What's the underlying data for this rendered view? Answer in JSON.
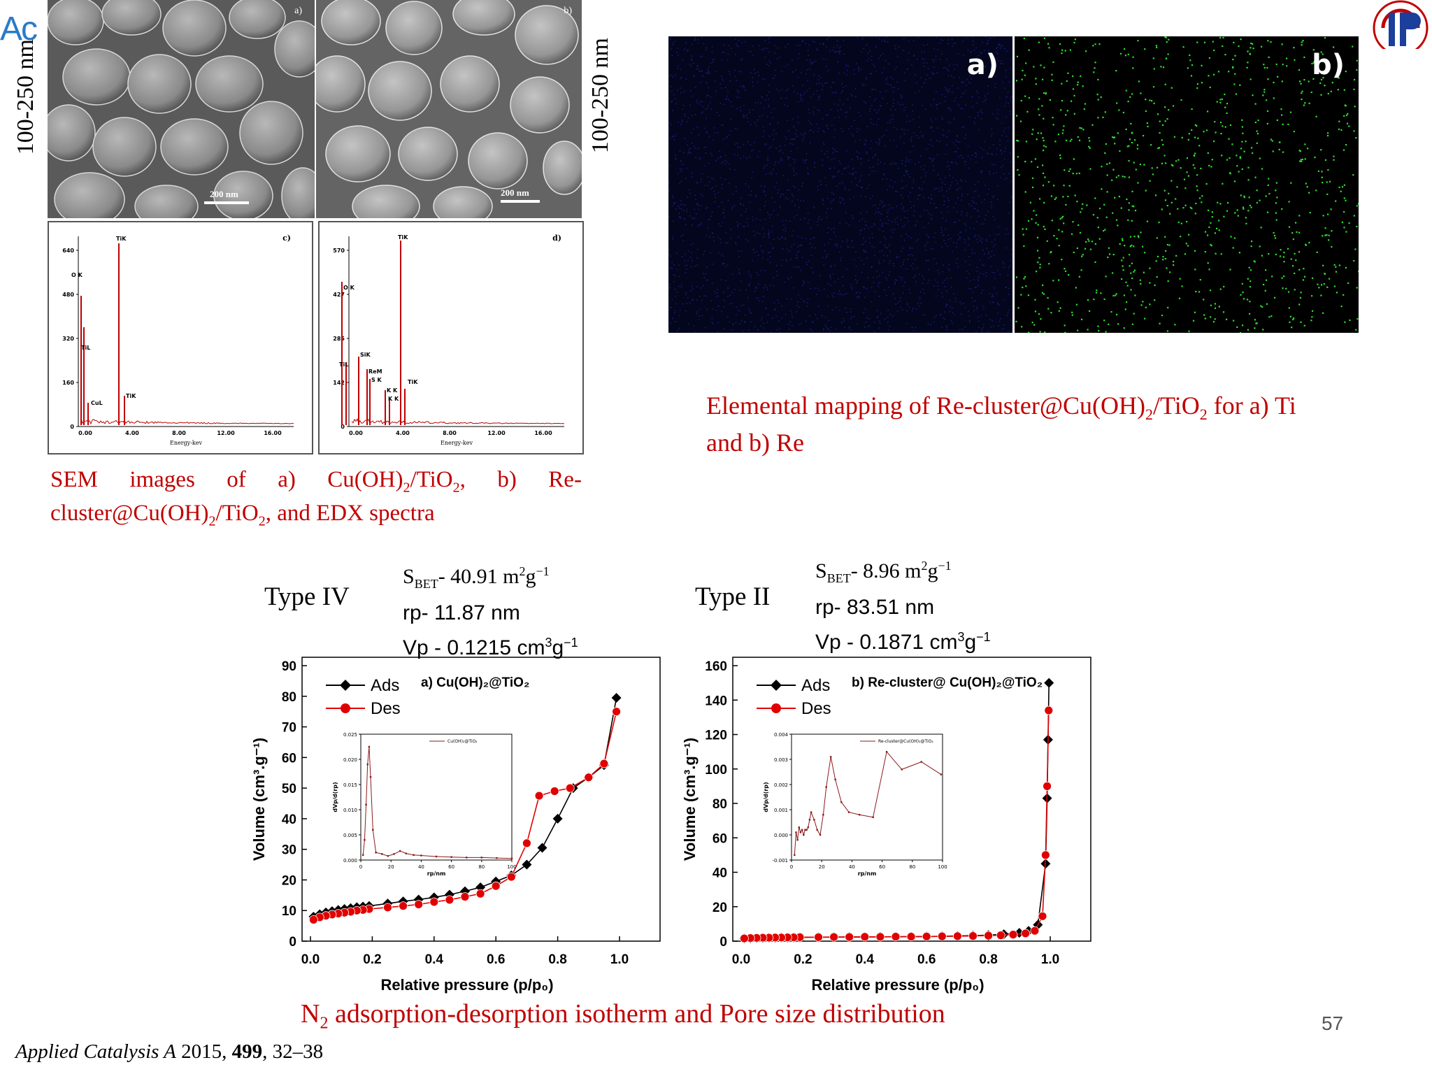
{
  "logo_left": {
    "text": "Ac"
  },
  "sem": {
    "panel_a": {
      "tag": "a)",
      "scale": "200 nm"
    },
    "panel_b": {
      "tag": "b)",
      "scale": "200 nm"
    },
    "size_left": "100-250 nm",
    "size_right": "100-250 nm"
  },
  "edx": {
    "c": {
      "tag": "c)",
      "xlabel": "Energy-kev",
      "xticks": [
        "0.00",
        "4.00",
        "8.00",
        "12.00",
        "16.00"
      ],
      "yticks": [
        "0",
        "160",
        "320",
        "480",
        "640"
      ],
      "peaks": [
        "TiK",
        "O K",
        "TiL",
        "CuL",
        "TiK"
      ]
    },
    "d": {
      "tag": "d)",
      "xlabel": "Energy-kev",
      "xticks": [
        "0.00",
        "4.00",
        "8.00",
        "12.00",
        "16.00"
      ],
      "yticks": [
        "0",
        "142",
        "285",
        "427",
        "570"
      ],
      "peaks": [
        "TiK",
        "O K",
        "SiK",
        "TiL",
        "ReM",
        "S K",
        "K K",
        "K K",
        "TiK"
      ]
    }
  },
  "sem_caption": {
    "line1": "SEM images of a) Cu(OH)",
    "line1b": "/TiO",
    "line1c": ", b) Re-",
    "line2": "cluster@Cu(OH)",
    "line2b": "/TiO",
    "line2c": ", and EDX spectra",
    "sub": "2"
  },
  "mapping": {
    "tag_a": "a)",
    "tag_b": "b)",
    "caption_p1": "Elemental mapping of Re-cluster@Cu(OH)",
    "caption_p2": "/TiO",
    "caption_p3": " for a) Ti",
    "caption_line2": "and b) Re",
    "sub": "2",
    "colors": {
      "ti": "#2a2fa8",
      "re": "#2fe02f"
    }
  },
  "iso_left": {
    "type": "Type IV",
    "sbet_prefix": "S",
    "sbet_sub": "BET",
    "sbet_val": "- 40.91 m",
    "sbet_sup1": "2",
    "sbet_unit": "g",
    "sbet_sup2": "−1",
    "rp": "rp- 11.87 nm",
    "vp": "Vp - 0.1215 cm",
    "vp_sup": "3",
    "vp_unit": "g",
    "vp_sup2": "−1"
  },
  "iso_right": {
    "type": "Type II",
    "sbet_prefix": "S",
    "sbet_sub": "BET",
    "sbet_val": "- 8.96 m",
    "sbet_sup1": "2",
    "sbet_unit": "g",
    "sbet_sup2": "−1",
    "rp": "rp- 83.51 nm",
    "vp": "Vp - 0.1871 cm",
    "vp_sup": "3",
    "vp_unit": "g",
    "vp_sup2": "−1"
  },
  "chart_data": [
    {
      "type": "line",
      "title": "a) Cu(OH)₂@TiO₂",
      "xlabel": "Relative pressure (p/p₀)",
      "ylabel": "Volume (cm³.g⁻¹)",
      "xlim": [
        0,
        1.0
      ],
      "ylim": [
        0,
        90
      ],
      "xticks": [
        "0.0",
        "0.2",
        "0.4",
        "0.6",
        "0.8",
        "1.0"
      ],
      "yticks": [
        "0",
        "10",
        "20",
        "30",
        "40",
        "50",
        "60",
        "70",
        "80",
        "90"
      ],
      "legend": "top-left",
      "series": [
        {
          "name": "Ads",
          "color": "#000000",
          "marker": "diamond",
          "x": [
            0.01,
            0.03,
            0.05,
            0.07,
            0.09,
            0.11,
            0.13,
            0.15,
            0.17,
            0.19,
            0.25,
            0.3,
            0.35,
            0.4,
            0.45,
            0.5,
            0.55,
            0.6,
            0.65,
            0.7,
            0.75,
            0.8,
            0.85,
            0.9,
            0.95,
            0.99
          ],
          "y": [
            8.0,
            8.8,
            9.4,
            9.8,
            10.2,
            10.5,
            10.8,
            11.1,
            11.3,
            11.5,
            12.3,
            13.0,
            13.6,
            14.3,
            15.2,
            16.3,
            17.6,
            19.5,
            21.5,
            25.0,
            30.5,
            40.0,
            50.0,
            53.5,
            57.5,
            79.5
          ]
        },
        {
          "name": "Des",
          "color": "#e00000",
          "marker": "circle",
          "x": [
            0.99,
            0.95,
            0.9,
            0.84,
            0.79,
            0.74,
            0.7,
            0.65,
            0.6,
            0.55,
            0.5,
            0.45,
            0.4,
            0.35,
            0.3,
            0.25,
            0.19,
            0.17,
            0.15,
            0.13,
            0.11,
            0.09,
            0.07,
            0.05,
            0.03,
            0.01
          ],
          "y": [
            75.0,
            58.0,
            53.5,
            50.0,
            49.0,
            47.5,
            32.0,
            21.0,
            18.0,
            15.5,
            14.5,
            13.5,
            12.8,
            12.0,
            11.5,
            11.0,
            10.5,
            10.2,
            10.0,
            9.6,
            9.3,
            9.0,
            8.7,
            8.3,
            7.8,
            7.0
          ]
        }
      ],
      "inset": {
        "type": "line",
        "legend": "Cu(OH)₂@TiO₂",
        "ylabel": "dVp/d(rp)",
        "xlabel": "rp/nm",
        "xlim": [
          0,
          100
        ],
        "ylim": [
          0,
          0.025
        ],
        "xticks": [
          "0",
          "20",
          "40",
          "60",
          "80",
          "100"
        ],
        "yticks": [
          "0.000",
          "0.005",
          "0.010",
          "0.015",
          "0.020",
          "0.025"
        ],
        "x": [
          1.5,
          2.5,
          3.5,
          4.5,
          5.5,
          6.5,
          8,
          10,
          14,
          18,
          22,
          26,
          30,
          35,
          40,
          50,
          60,
          70,
          80,
          90,
          100
        ],
        "y": [
          0.001,
          0.004,
          0.011,
          0.019,
          0.0225,
          0.0165,
          0.006,
          0.0015,
          0.0012,
          0.0008,
          0.0012,
          0.0018,
          0.0013,
          0.001,
          0.0009,
          0.0007,
          0.0006,
          0.0005,
          0.0005,
          0.0004,
          0.0003
        ]
      }
    },
    {
      "type": "line",
      "title": "b) Re-cluster@ Cu(OH)₂@TiO₂",
      "xlabel": "Relative pressure (p/p₀)",
      "ylabel": "Volume (cm³.g⁻¹)",
      "xlim": [
        0,
        1.0
      ],
      "ylim": [
        0,
        160
      ],
      "xticks": [
        "0.0",
        "0.2",
        "0.4",
        "0.6",
        "0.8",
        "1.0"
      ],
      "yticks": [
        "0",
        "20",
        "40",
        "60",
        "80",
        "100",
        "120",
        "140",
        "160"
      ],
      "legend": "top-left",
      "series": [
        {
          "name": "Ads",
          "color": "#000000",
          "marker": "diamond",
          "x": [
            0.01,
            0.03,
            0.05,
            0.07,
            0.09,
            0.11,
            0.13,
            0.15,
            0.17,
            0.19,
            0.25,
            0.3,
            0.35,
            0.4,
            0.45,
            0.5,
            0.55,
            0.6,
            0.65,
            0.7,
            0.75,
            0.8,
            0.85,
            0.9,
            0.93,
            0.96,
            0.985,
            0.99,
            0.993,
            0.996
          ],
          "y": [
            1.5,
            1.7,
            1.8,
            1.9,
            2.0,
            2.0,
            2.1,
            2.1,
            2.2,
            2.2,
            2.3,
            2.3,
            2.4,
            2.4,
            2.5,
            2.5,
            2.6,
            2.7,
            2.8,
            3.0,
            3.2,
            3.5,
            4.0,
            4.8,
            6.0,
            9.5,
            45.0,
            83.0,
            117.0,
            150.0
          ]
        },
        {
          "name": "Des",
          "color": "#e00000",
          "marker": "circle",
          "x": [
            0.995,
            0.99,
            0.985,
            0.975,
            0.95,
            0.92,
            0.88,
            0.84,
            0.8,
            0.75,
            0.7,
            0.65,
            0.6,
            0.55,
            0.5,
            0.45,
            0.4,
            0.35,
            0.3,
            0.25,
            0.19,
            0.17,
            0.15,
            0.13,
            0.11,
            0.09,
            0.07,
            0.05,
            0.03,
            0.01
          ],
          "y": [
            134.0,
            90.0,
            50.0,
            14.5,
            6.0,
            4.5,
            3.8,
            3.4,
            3.2,
            3.0,
            2.9,
            2.8,
            2.7,
            2.6,
            2.6,
            2.5,
            2.5,
            2.4,
            2.4,
            2.3,
            2.3,
            2.2,
            2.2,
            2.1,
            2.1,
            2.0,
            2.0,
            1.9,
            1.8,
            1.6
          ]
        }
      ],
      "inset": {
        "type": "line",
        "legend": "Re-cluster@Cu(OH)₂@TiO₂",
        "ylabel": "dVp/d(rp)",
        "xlabel": "rp/nm",
        "xlim": [
          0,
          100
        ],
        "ylim": [
          -0.001,
          0.004
        ],
        "xticks": [
          "0",
          "20",
          "40",
          "60",
          "80",
          "100"
        ],
        "yticks": [
          "-0.001",
          "0.000",
          "0.001",
          "0.002",
          "0.003",
          "0.004"
        ],
        "x": [
          2,
          3,
          4,
          5,
          6,
          7,
          8,
          9,
          10,
          11,
          12,
          13,
          15,
          17,
          19,
          21,
          23,
          26,
          29,
          33,
          38,
          45,
          54,
          63,
          73,
          86,
          99
        ],
        "y": [
          -0.0008,
          0.0001,
          -0.0002,
          0.0003,
          0.0001,
          0.0002,
          0.0,
          0.0002,
          0.0002,
          0.0003,
          0.0006,
          0.0009,
          0.0006,
          0.0002,
          0.0,
          0.0008,
          0.0019,
          0.0031,
          0.0022,
          0.0013,
          0.0009,
          0.0008,
          0.0007,
          0.0033,
          0.0026,
          0.0029,
          0.0024
        ]
      }
    }
  ],
  "bottom_caption": {
    "p1": "N",
    "sub": "2",
    "p2": " adsorption-desorption isotherm and Pore size distribution"
  },
  "footer": {
    "ref_italic": "Applied Catalysis A",
    "ref_year": " 2015, ",
    "ref_vol": "499",
    "ref_pages": ", 32–38",
    "page": "57"
  }
}
